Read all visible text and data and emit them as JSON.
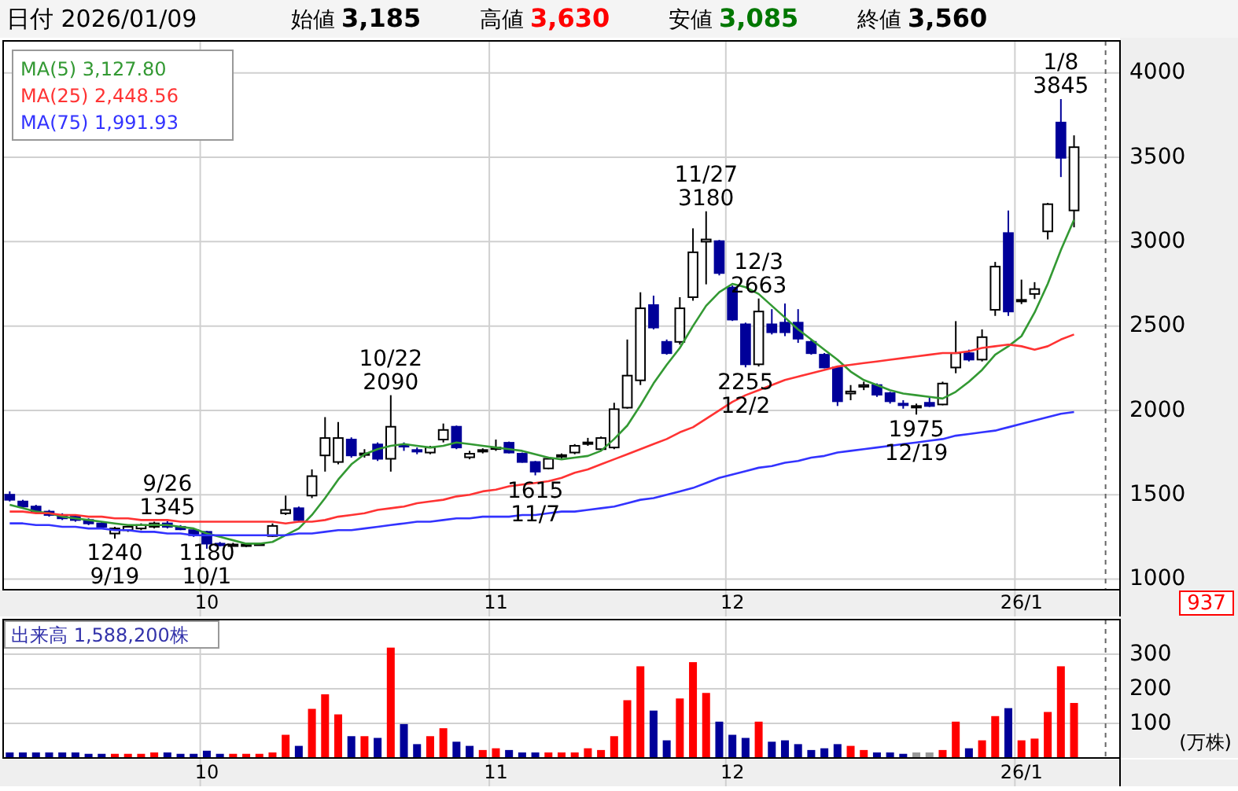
{
  "chart_data": [
    {
      "type": "candlestick",
      "title": "日付 2026/01/09",
      "categories": [
        null,
        null,
        null,
        null,
        null,
        null,
        null,
        null,
        null,
        null,
        null,
        null,
        null,
        null,
        null,
        "10",
        null,
        null,
        null,
        null,
        null,
        null,
        null,
        null,
        null,
        null,
        null,
        null,
        null,
        null,
        null,
        null,
        null,
        null,
        null,
        null,
        null,
        "11",
        null,
        null,
        null,
        null,
        null,
        null,
        null,
        null,
        null,
        null,
        null,
        null,
        null,
        null,
        null,
        null,
        null,
        "12",
        null,
        null,
        null,
        null,
        null,
        null,
        null,
        null,
        null,
        null,
        null,
        null,
        null,
        null,
        null,
        null,
        null,
        null,
        null,
        null,
        null,
        "26/1",
        null,
        null,
        null,
        null
      ],
      "ylim": [
        937,
        4190
      ],
      "yticks": [
        1000,
        1500,
        2000,
        2500,
        3000,
        3500,
        4000
      ],
      "grid": true,
      "legend": "top left",
      "ohlc": [
        [
          1500,
          1520,
          1460,
          1470
        ],
        [
          1460,
          1470,
          1420,
          1430
        ],
        [
          1430,
          1440,
          1390,
          1400
        ],
        [
          1400,
          1410,
          1370,
          1380
        ],
        [
          1380,
          1390,
          1350,
          1360
        ],
        [
          1370,
          1380,
          1340,
          1350
        ],
        [
          1350,
          1360,
          1320,
          1330
        ],
        [
          1330,
          1340,
          1300,
          1310
        ],
        [
          1270,
          1310,
          1240,
          1300
        ],
        [
          1290,
          1320,
          1280,
          1310
        ],
        [
          1300,
          1330,
          1290,
          1320
        ],
        [
          1310,
          1340,
          1300,
          1330
        ],
        [
          1330,
          1345,
          1300,
          1310
        ],
        [
          1310,
          1320,
          1290,
          1295
        ],
        [
          1290,
          1295,
          1250,
          1260
        ],
        [
          1280,
          1285,
          1180,
          1210
        ],
        [
          1210,
          1220,
          1195,
          1200
        ],
        [
          1200,
          1215,
          1195,
          1205
        ],
        [
          1200,
          1210,
          1190,
          1205
        ],
        [
          1205,
          1215,
          1200,
          1210
        ],
        [
          1255,
          1330,
          1250,
          1315
        ],
        [
          1390,
          1495,
          1380,
          1410
        ],
        [
          1420,
          1430,
          1340,
          1350
        ],
        [
          1495,
          1650,
          1480,
          1610
        ],
        [
          1733,
          1960,
          1637,
          1836
        ],
        [
          1694,
          1931,
          1680,
          1836
        ],
        [
          1827,
          1840,
          1720,
          1733
        ],
        [
          1740,
          1770,
          1720,
          1745
        ],
        [
          1798,
          1810,
          1700,
          1713
        ],
        [
          1713,
          2090,
          1637,
          1903
        ],
        [
          1795,
          1810,
          1760,
          1785
        ],
        [
          1765,
          1780,
          1740,
          1760
        ],
        [
          1750,
          1790,
          1740,
          1780
        ],
        [
          1827,
          1922,
          1810,
          1884
        ],
        [
          1903,
          1910,
          1770,
          1780
        ],
        [
          1722,
          1760,
          1710,
          1743
        ],
        [
          1760,
          1775,
          1745,
          1765
        ],
        [
          1778,
          1827,
          1760,
          1780
        ],
        [
          1808,
          1815,
          1745,
          1750
        ],
        [
          1743,
          1750,
          1690,
          1694
        ],
        [
          1694,
          1700,
          1615,
          1637
        ],
        [
          1656,
          1725,
          1650,
          1713
        ],
        [
          1730,
          1745,
          1715,
          1735
        ],
        [
          1750,
          1800,
          1740,
          1790
        ],
        [
          1805,
          1837,
          1790,
          1810
        ],
        [
          1770,
          1845,
          1760,
          1836
        ],
        [
          1780,
          2045,
          1770,
          2007
        ],
        [
          2016,
          2420,
          2010,
          2206
        ],
        [
          2178,
          2700,
          2150,
          2605
        ],
        [
          2624,
          2680,
          2480,
          2491
        ],
        [
          2406,
          2420,
          2330,
          2339
        ],
        [
          2406,
          2671,
          2390,
          2605
        ],
        [
          2671,
          3079,
          2650,
          2937
        ],
        [
          3000,
          3180,
          2747,
          3013
        ],
        [
          3003,
          3010,
          2800,
          2814
        ],
        [
          2728,
          2740,
          2530,
          2538
        ],
        [
          2510,
          2520,
          2255,
          2273
        ],
        [
          2273,
          2663,
          2260,
          2586
        ],
        [
          2510,
          2600,
          2450,
          2463
        ],
        [
          2520,
          2633,
          2440,
          2463
        ],
        [
          2520,
          2600,
          2400,
          2425
        ],
        [
          2406,
          2420,
          2330,
          2339
        ],
        [
          2330,
          2340,
          2250,
          2254
        ],
        [
          2254,
          2260,
          2026,
          2054
        ],
        [
          2100,
          2150,
          2060,
          2112
        ],
        [
          2140,
          2170,
          2120,
          2150
        ],
        [
          2150,
          2160,
          2080,
          2093
        ],
        [
          2102,
          2110,
          2040,
          2054
        ],
        [
          2040,
          2060,
          2010,
          2035
        ],
        [
          2020,
          2040,
          1975,
          2026
        ],
        [
          2045,
          2080,
          2020,
          2026
        ],
        [
          2035,
          2170,
          2030,
          2159
        ],
        [
          2254,
          2529,
          2220,
          2339
        ],
        [
          2339,
          2360,
          2290,
          2301
        ],
        [
          2301,
          2480,
          2290,
          2434
        ],
        [
          2596,
          2880,
          2560,
          2852
        ],
        [
          3051,
          3184,
          2560,
          2586
        ],
        [
          2652,
          2775,
          2630,
          2655
        ],
        [
          2690,
          2760,
          2660,
          2719
        ],
        [
          3061,
          3230,
          3013,
          3222
        ],
        [
          3706,
          3845,
          3383,
          3497
        ],
        [
          3185,
          3630,
          3085,
          3560
        ]
      ],
      "series": [
        {
          "name": "MA(5) 3,127.80",
          "type": "line",
          "color": "#339933",
          "values": [
            1440,
            1420,
            1400,
            1390,
            1370,
            1360,
            1350,
            1340,
            1330,
            1320,
            1320,
            1320,
            1320,
            1310,
            1300,
            1270,
            1250,
            1230,
            1210,
            1210,
            1220,
            1260,
            1300,
            1380,
            1480,
            1590,
            1680,
            1740,
            1770,
            1790,
            1800,
            1790,
            1780,
            1790,
            1810,
            1800,
            1790,
            1780,
            1770,
            1760,
            1740,
            1720,
            1710,
            1720,
            1730,
            1760,
            1830,
            1910,
            2030,
            2160,
            2270,
            2370,
            2500,
            2620,
            2700,
            2750,
            2730,
            2690,
            2620,
            2550,
            2480,
            2420,
            2360,
            2300,
            2230,
            2180,
            2150,
            2120,
            2100,
            2090,
            2080,
            2070,
            2110,
            2170,
            2240,
            2330,
            2380,
            2440,
            2580,
            2750,
            2950,
            3130
          ]
        },
        {
          "name": "MA(25) 2,448.56",
          "type": "line",
          "color": "#ff3333",
          "values": [
            1400,
            1400,
            1390,
            1390,
            1380,
            1380,
            1370,
            1370,
            1360,
            1360,
            1350,
            1350,
            1350,
            1340,
            1340,
            1340,
            1340,
            1340,
            1340,
            1340,
            1340,
            1330,
            1340,
            1340,
            1350,
            1370,
            1380,
            1390,
            1410,
            1420,
            1430,
            1450,
            1460,
            1470,
            1490,
            1500,
            1520,
            1530,
            1550,
            1560,
            1570,
            1580,
            1600,
            1630,
            1650,
            1680,
            1710,
            1740,
            1770,
            1800,
            1830,
            1870,
            1900,
            1950,
            2000,
            2050,
            2090,
            2120,
            2150,
            2180,
            2200,
            2220,
            2240,
            2260,
            2270,
            2280,
            2290,
            2300,
            2310,
            2320,
            2330,
            2340,
            2340,
            2350,
            2370,
            2380,
            2390,
            2380,
            2360,
            2380,
            2420,
            2450
          ]
        },
        {
          "name": "MA(75) 1,991.93",
          "type": "line",
          "color": "#3333ff",
          "values": [
            1330,
            1330,
            1320,
            1320,
            1310,
            1310,
            1300,
            1300,
            1290,
            1290,
            1280,
            1280,
            1270,
            1270,
            1260,
            1260,
            1260,
            1260,
            1260,
            1260,
            1260,
            1260,
            1270,
            1270,
            1280,
            1290,
            1290,
            1300,
            1310,
            1320,
            1330,
            1340,
            1340,
            1350,
            1360,
            1360,
            1370,
            1370,
            1370,
            1380,
            1380,
            1390,
            1400,
            1400,
            1410,
            1420,
            1430,
            1450,
            1470,
            1480,
            1500,
            1520,
            1540,
            1570,
            1600,
            1620,
            1640,
            1660,
            1670,
            1690,
            1700,
            1720,
            1730,
            1750,
            1760,
            1770,
            1780,
            1790,
            1800,
            1810,
            1820,
            1830,
            1850,
            1860,
            1870,
            1880,
            1900,
            1920,
            1940,
            1960,
            1980,
            1990
          ]
        }
      ],
      "annotations": [
        "始値 3,185",
        "高値 3,630",
        "安値 3,085",
        "終値 3,560",
        "937",
        {
          "text": "1240\n9/19",
          "y": 1240
        },
        {
          "text": "9/26\n1345",
          "y": 1345
        },
        {
          "text": "1180\n10/1",
          "y": 1180
        },
        {
          "text": "10/22\n2090",
          "y": 2090
        },
        {
          "text": "1615\n11/7",
          "y": 1615
        },
        {
          "text": "11/27\n3180",
          "y": 3180
        },
        {
          "text": "2255\n12/2",
          "y": 2255
        },
        {
          "text": "12/3\n2663",
          "y": 2663
        },
        {
          "text": "1975\n12/19",
          "y": 1975
        },
        {
          "text": "1/8\n3845",
          "y": 3845
        }
      ]
    },
    {
      "type": "bar",
      "title": "出来高 1,588,200株",
      "ylabel": "(万株)",
      "categories": [
        null,
        null,
        null,
        null,
        null,
        null,
        null,
        null,
        null,
        null,
        null,
        null,
        null,
        null,
        null,
        "10",
        null,
        null,
        null,
        null,
        null,
        null,
        null,
        null,
        null,
        null,
        null,
        null,
        null,
        null,
        null,
        null,
        null,
        null,
        null,
        null,
        null,
        "11",
        null,
        null,
        null,
        null,
        null,
        null,
        null,
        null,
        null,
        null,
        null,
        null,
        null,
        null,
        null,
        null,
        null,
        "12",
        null,
        null,
        null,
        null,
        null,
        null,
        null,
        null,
        null,
        null,
        null,
        null,
        null,
        null,
        null,
        null,
        null,
        null,
        null,
        null,
        null,
        "26/1",
        null,
        null,
        null,
        null
      ],
      "ylim": [
        0,
        400
      ],
      "yticks": [
        100,
        200,
        300
      ],
      "grid": true,
      "values": [
        16,
        16,
        16,
        16,
        16,
        16,
        12,
        12,
        12,
        12,
        12,
        16,
        16,
        12,
        12,
        21,
        12,
        12,
        12,
        12,
        16,
        67,
        35,
        142,
        184,
        126,
        63,
        63,
        58,
        319,
        98,
        40,
        63,
        86,
        47,
        35,
        23,
        28,
        23,
        16,
        16,
        16,
        16,
        16,
        28,
        23,
        63,
        167,
        265,
        137,
        51,
        172,
        277,
        188,
        105,
        67,
        58,
        105,
        47,
        51,
        40,
        23,
        28,
        40,
        35,
        23,
        16,
        16,
        12,
        16,
        16,
        23,
        105,
        28,
        51,
        121,
        144,
        51,
        56,
        133,
        265,
        159
      ],
      "colors": [
        "#000099",
        "#000099",
        "#000099",
        "#000099",
        "#000099",
        "#000099",
        "#000099",
        "#000099",
        "#ff0000",
        "#ff0000",
        "#ff0000",
        "#ff0000",
        "#000099",
        "#000099",
        "#000099",
        "#000099",
        "#000099",
        "#ff0000",
        "#ff0000",
        "#ff0000",
        "#ff0000",
        "#ff0000",
        "#000099",
        "#ff0000",
        "#ff0000",
        "#ff0000",
        "#000099",
        "#ff0000",
        "#000099",
        "#ff0000",
        "#000099",
        "#000099",
        "#ff0000",
        "#ff0000",
        "#000099",
        "#000099",
        "#ff0000",
        "#ff0000",
        "#000099",
        "#000099",
        "#000099",
        "#ff0000",
        "#ff0000",
        "#ff0000",
        "#ff0000",
        "#ff0000",
        "#ff0000",
        "#ff0000",
        "#ff0000",
        "#000099",
        "#000099",
        "#ff0000",
        "#ff0000",
        "#ff0000",
        "#000099",
        "#000099",
        "#000099",
        "#ff0000",
        "#000099",
        "#000099",
        "#000099",
        "#000099",
        "#000099",
        "#000099",
        "#ff0000",
        "#ff0000",
        "#000099",
        "#000099",
        "#000099",
        "#999999",
        "#999999",
        "#ff0000",
        "#ff0000",
        "#000099",
        "#ff0000",
        "#ff0000",
        "#000099",
        "#ff0000",
        "#ff0000",
        "#ff0000",
        "#ff0000",
        "#ff0000"
      ]
    }
  ]
}
